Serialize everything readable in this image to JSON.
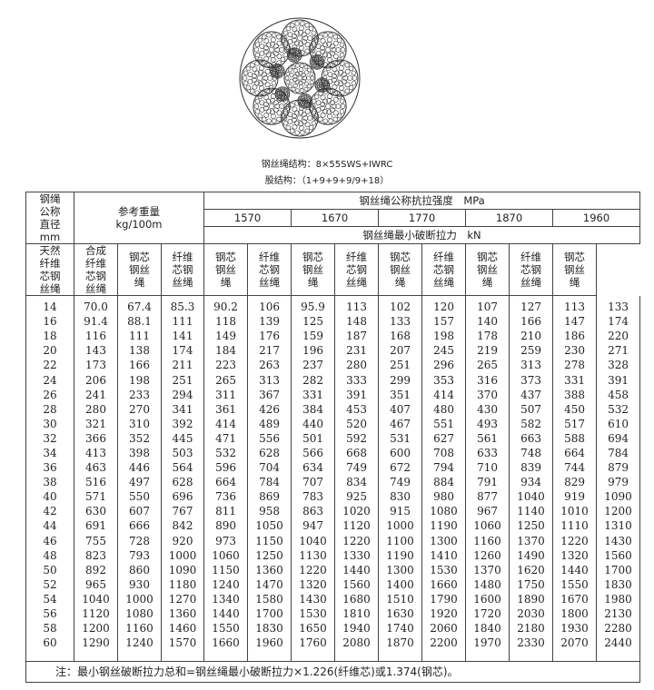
{
  "figure": {
    "structure_label": "钢丝绳结构：8×55SWS+IWRC",
    "strand_label": "股结构：（1+9+9+9/9+18）"
  },
  "table": {
    "col_diameter": "钢绳公称直径mm",
    "col_diameter_lines": [
      "钢绳",
      "公称",
      "直径",
      "mm"
    ],
    "weight_header": "参考重量",
    "weight_unit": "kg/100m",
    "strength_header": "钢丝绳公称抗拉强度　MPa",
    "grades": [
      "1570",
      "1670",
      "1770",
      "1870",
      "1960"
    ],
    "force_header": "钢丝绳最小破断拉力　kN",
    "weight_cols": [
      [
        "天然",
        "纤维",
        "芯钢",
        "丝绳"
      ],
      [
        "合成",
        "纤维",
        "芯钢",
        "丝绳"
      ],
      [
        "钢芯",
        "钢丝",
        "绳"
      ]
    ],
    "grade_cols": [
      [
        "纤维",
        "芯钢",
        "丝绳"
      ],
      [
        "钢芯",
        "钢丝",
        "绳"
      ]
    ],
    "rows": [
      [
        "14",
        "70.0",
        "67.4",
        "85.3",
        "90.2",
        "106",
        "95.9",
        "113",
        "102",
        "120",
        "107",
        "127",
        "113",
        "133"
      ],
      [
        "16",
        "91.4",
        "88.1",
        "111",
        "118",
        "139",
        "125",
        "148",
        "133",
        "157",
        "140",
        "166",
        "147",
        "174"
      ],
      [
        "18",
        "116",
        "111",
        "141",
        "149",
        "176",
        "159",
        "187",
        "168",
        "198",
        "178",
        "210",
        "186",
        "220"
      ],
      [
        "20",
        "143",
        "138",
        "174",
        "184",
        "217",
        "196",
        "231",
        "207",
        "245",
        "219",
        "259",
        "230",
        "271"
      ],
      [
        "22",
        "173",
        "166",
        "211",
        "223",
        "263",
        "237",
        "280",
        "251",
        "296",
        "265",
        "313",
        "278",
        "328"
      ],
      [
        "24",
        "206",
        "198",
        "251",
        "265",
        "313",
        "282",
        "333",
        "299",
        "353",
        "316",
        "373",
        "331",
        "391"
      ],
      [
        "26",
        "241",
        "233",
        "294",
        "311",
        "367",
        "331",
        "391",
        "351",
        "414",
        "370",
        "437",
        "388",
        "458"
      ],
      [
        "28",
        "280",
        "270",
        "341",
        "361",
        "426",
        "384",
        "453",
        "407",
        "480",
        "430",
        "507",
        "450",
        "532"
      ],
      [
        "30",
        "321",
        "310",
        "392",
        "414",
        "489",
        "440",
        "520",
        "467",
        "551",
        "493",
        "582",
        "517",
        "610"
      ],
      [
        "32",
        "366",
        "352",
        "445",
        "471",
        "556",
        "501",
        "592",
        "531",
        "627",
        "561",
        "663",
        "588",
        "694"
      ],
      [
        "34",
        "413",
        "398",
        "503",
        "532",
        "628",
        "566",
        "668",
        "600",
        "708",
        "633",
        "748",
        "664",
        "784"
      ],
      [
        "36",
        "463",
        "446",
        "564",
        "596",
        "704",
        "634",
        "749",
        "672",
        "794",
        "710",
        "839",
        "744",
        "879"
      ],
      [
        "38",
        "516",
        "497",
        "628",
        "664",
        "784",
        "707",
        "834",
        "749",
        "884",
        "791",
        "934",
        "829",
        "979"
      ],
      [
        "40",
        "571",
        "550",
        "696",
        "736",
        "869",
        "783",
        "925",
        "830",
        "980",
        "877",
        "1040",
        "919",
        "1090"
      ],
      [
        "42",
        "630",
        "607",
        "767",
        "811",
        "958",
        "863",
        "1020",
        "915",
        "1080",
        "967",
        "1140",
        "1010",
        "1200"
      ],
      [
        "44",
        "691",
        "666",
        "842",
        "890",
        "1050",
        "947",
        "1120",
        "1000",
        "1190",
        "1060",
        "1250",
        "1110",
        "1310"
      ],
      [
        "46",
        "755",
        "728",
        "920",
        "973",
        "1150",
        "1040",
        "1220",
        "1100",
        "1300",
        "1160",
        "1370",
        "1220",
        "1430"
      ],
      [
        "48",
        "823",
        "793",
        "1000",
        "1060",
        "1250",
        "1130",
        "1330",
        "1190",
        "1410",
        "1260",
        "1490",
        "1320",
        "1560"
      ],
      [
        "50",
        "892",
        "860",
        "1090",
        "1150",
        "1360",
        "1220",
        "1440",
        "1300",
        "1530",
        "1370",
        "1620",
        "1440",
        "1700"
      ],
      [
        "52",
        "965",
        "930",
        "1180",
        "1240",
        "1470",
        "1320",
        "1560",
        "1400",
        "1660",
        "1480",
        "1750",
        "1550",
        "1830"
      ],
      [
        "54",
        "1040",
        "1000",
        "1270",
        "1340",
        "1580",
        "1430",
        "1680",
        "1510",
        "1790",
        "1600",
        "1890",
        "1670",
        "1980"
      ],
      [
        "56",
        "1120",
        "1080",
        "1360",
        "1440",
        "1700",
        "1530",
        "1810",
        "1630",
        "1920",
        "1720",
        "2030",
        "1800",
        "2130"
      ],
      [
        "58",
        "1200",
        "1160",
        "1460",
        "1550",
        "1830",
        "1650",
        "1940",
        "1740",
        "2060",
        "1840",
        "2180",
        "1930",
        "2280"
      ],
      [
        "60",
        "1290",
        "1240",
        "1570",
        "1660",
        "1960",
        "1760",
        "2080",
        "1870",
        "2200",
        "1970",
        "2330",
        "2070",
        "2440"
      ]
    ],
    "note": "注：最小钢丝破断拉力总和=钢丝绳最小破断拉力×1.226(纤维芯)或1.374(钢芯)。"
  }
}
